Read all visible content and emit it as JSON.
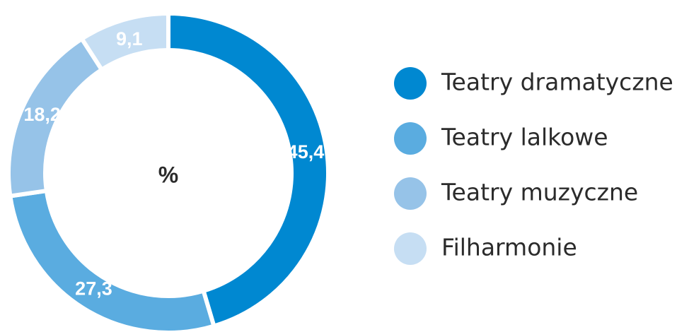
{
  "chart_data": {
    "type": "donut",
    "center_label": "%",
    "categories": [
      "Teatry dramatyczne",
      "Teatry lalkowe",
      "Teatry muzyczne",
      "Filharmonie"
    ],
    "values": [
      45.4,
      27.3,
      18.2,
      9.1
    ],
    "value_labels": [
      "45,4",
      "27,3",
      "18,2",
      "9,1"
    ],
    "colors": [
      "#0088d1",
      "#5aace0",
      "#96c3e8",
      "#c6def3"
    ],
    "legend": "right"
  }
}
